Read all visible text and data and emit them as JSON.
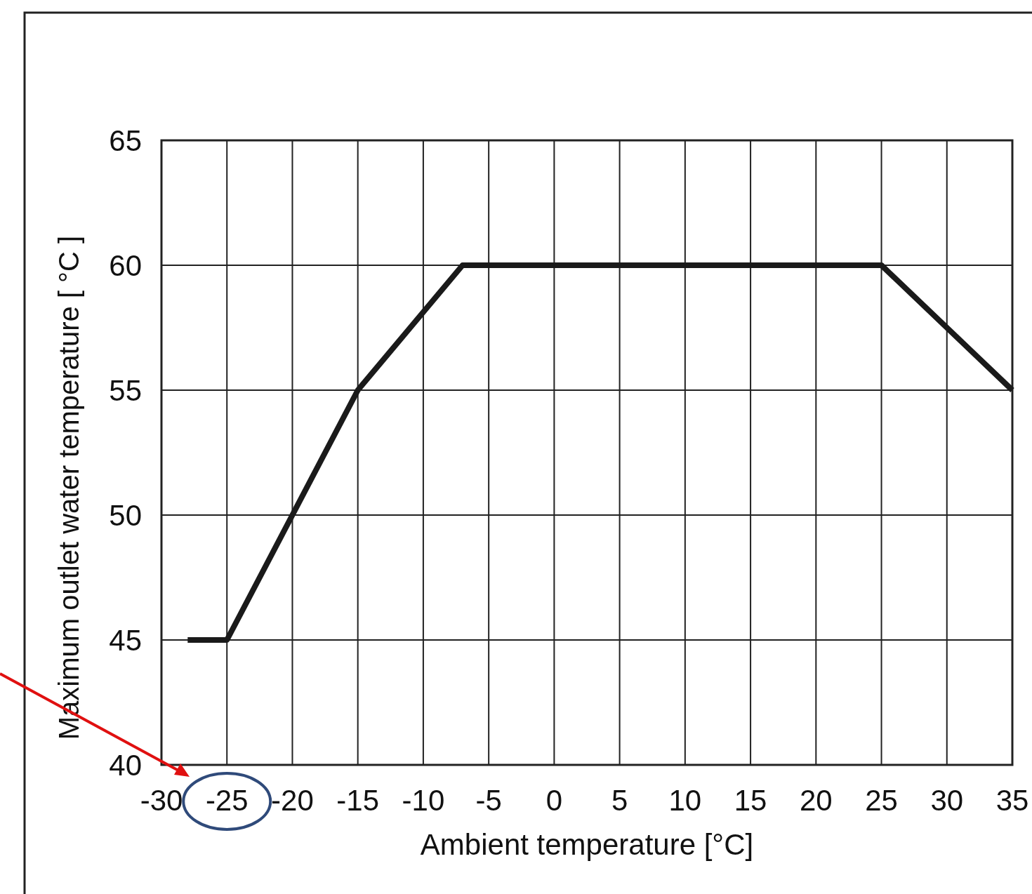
{
  "chart_data": {
    "type": "line",
    "xlabel": "Ambient temperature [°C]",
    "ylabel": "Maximum outlet water temperature [ °C ]",
    "x": [
      -28,
      -25,
      -15,
      -7,
      25,
      35
    ],
    "series": [
      {
        "color": "#1a1a1a",
        "values": [
          45,
          45,
          55,
          60,
          60,
          55
        ]
      }
    ],
    "xlim": [
      -30,
      35
    ],
    "xticks": [
      -30,
      -25,
      -20,
      -15,
      -10,
      -5,
      0,
      5,
      10,
      15,
      20,
      25,
      30,
      35
    ],
    "ylim": [
      40,
      65
    ],
    "yticks": [
      40,
      45,
      50,
      55,
      60,
      65
    ],
    "grid": true,
    "marker": "none",
    "line_style": "solid"
  }
}
